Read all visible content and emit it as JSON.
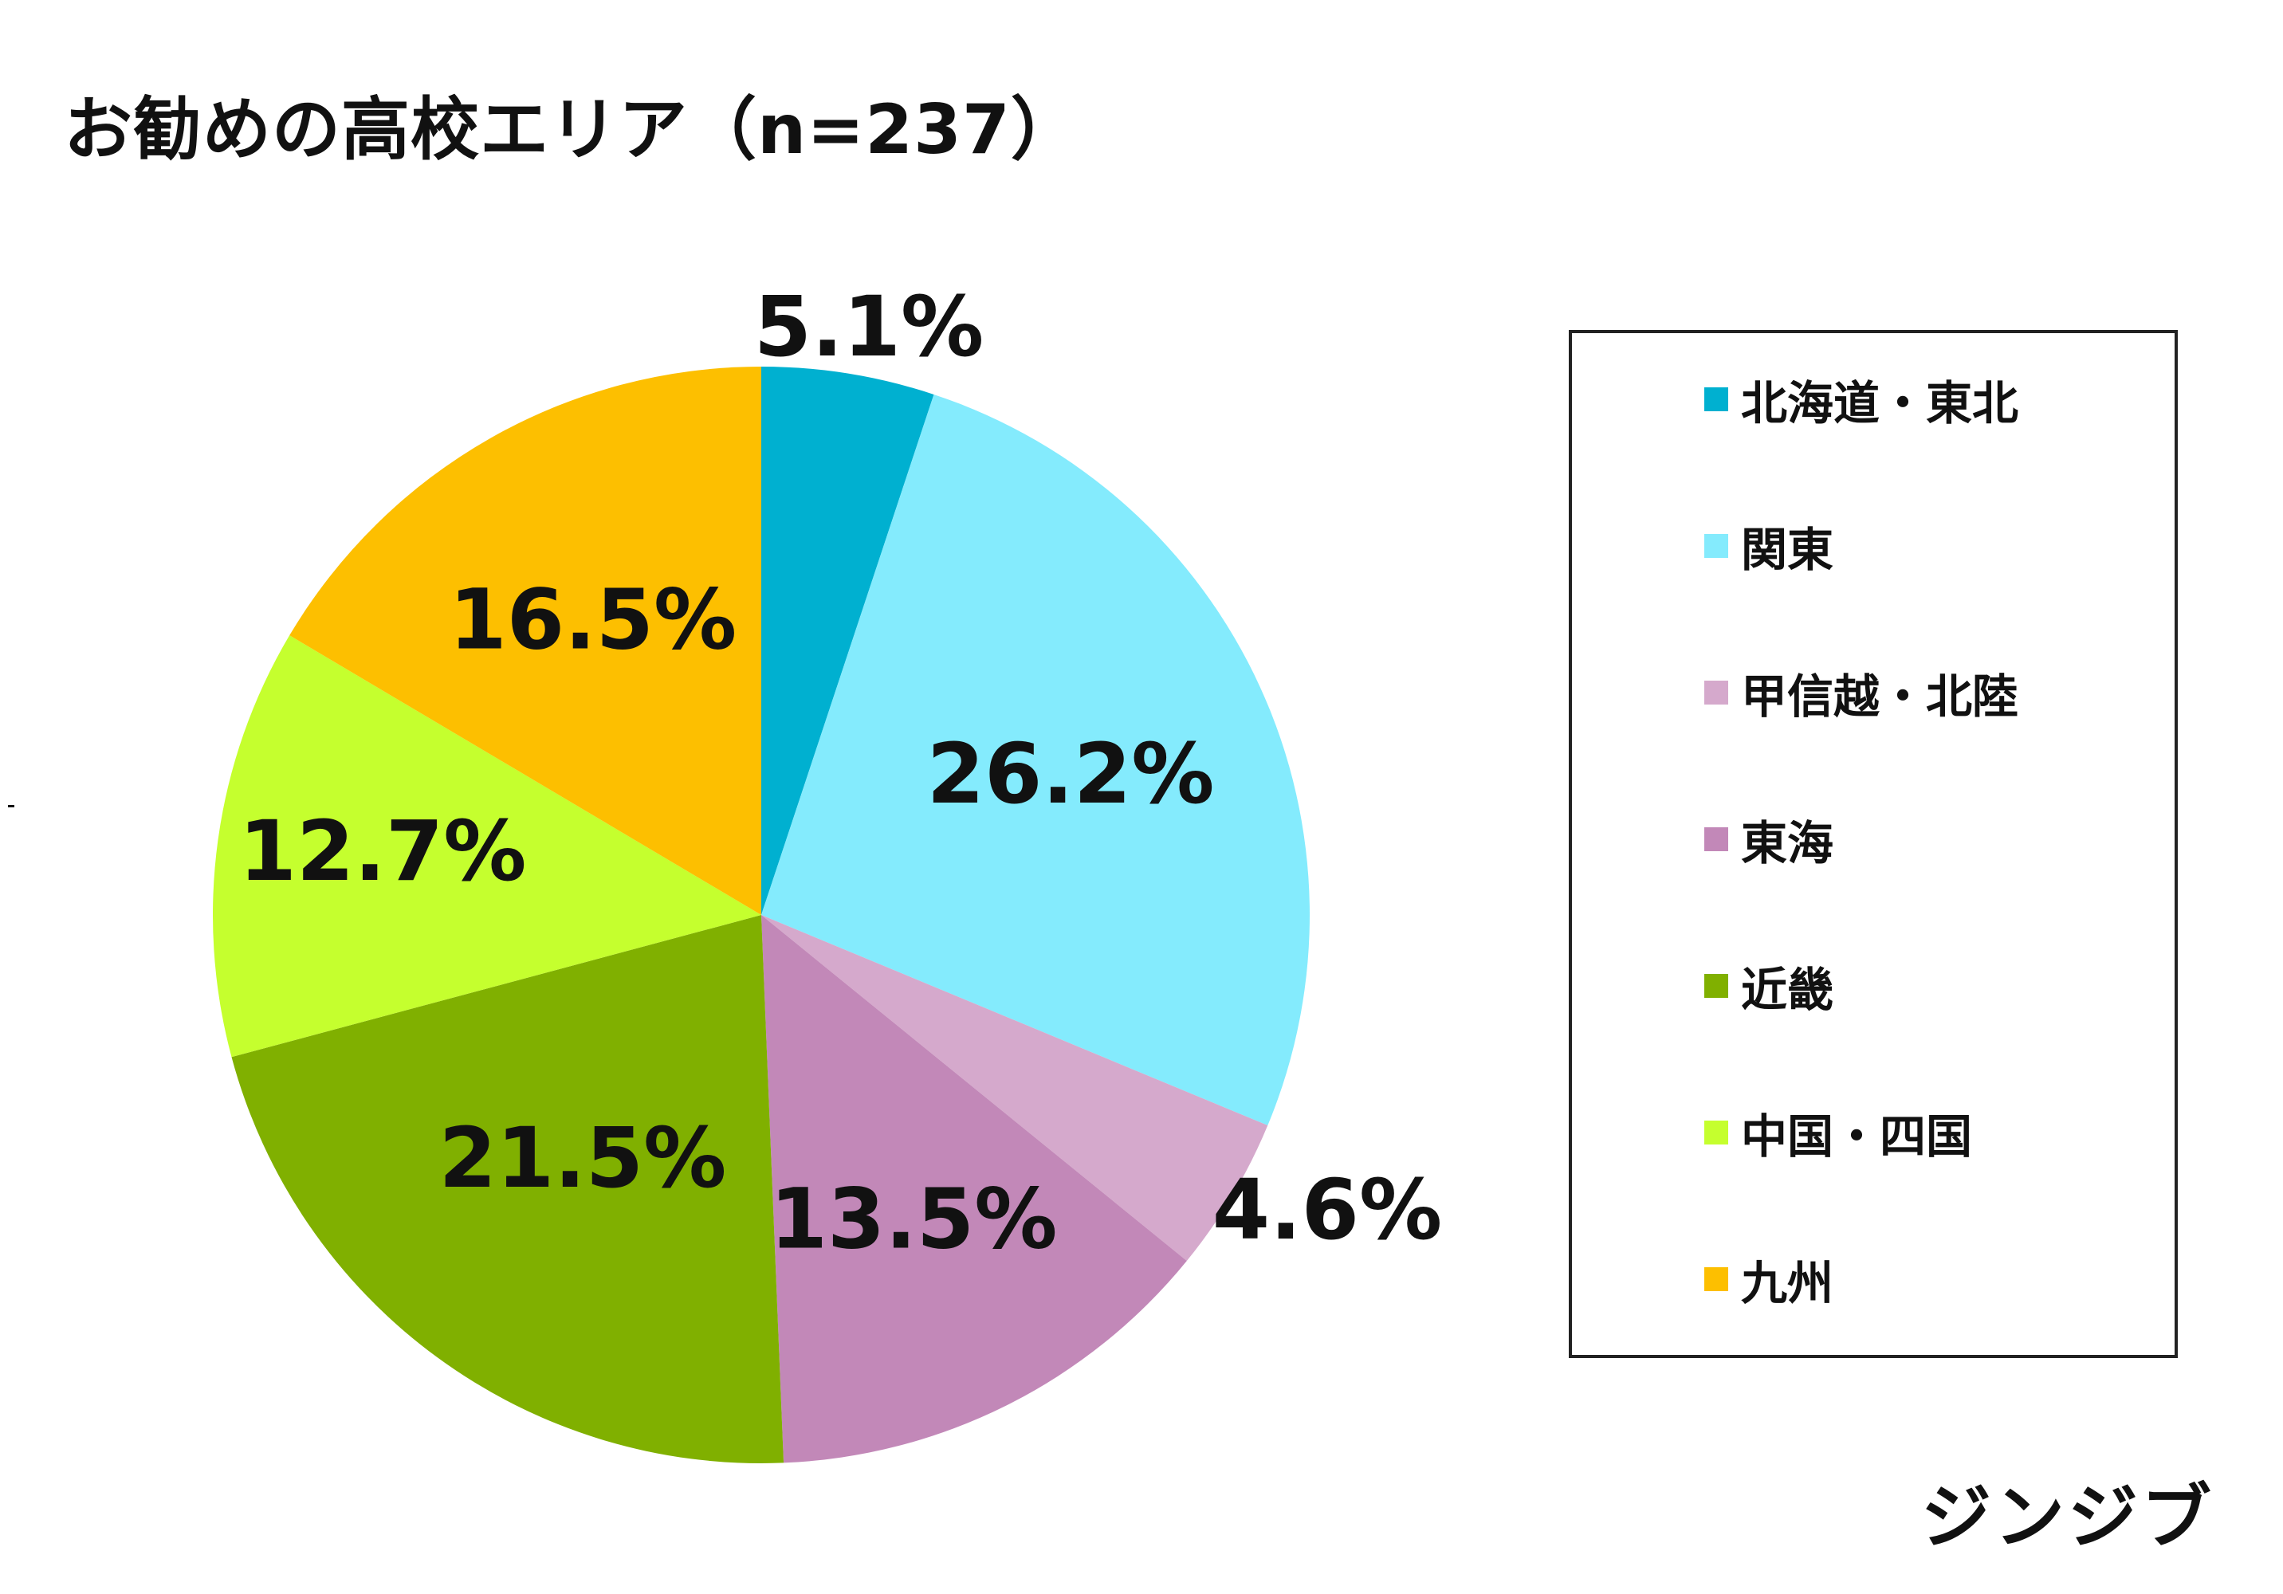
{
  "chart_data": {
    "type": "pie",
    "title": "お勧めの高校エリア（n=237）",
    "slices": [
      {
        "name": "北海道・東北",
        "value": 5.1,
        "label": "5.1%",
        "color": "#00b0d0"
      },
      {
        "name": "関東",
        "value": 26.2,
        "label": "26.2%",
        "color": "#84ebfd"
      },
      {
        "name": "甲信越・北陸",
        "value": 4.6,
        "label": "4.6%",
        "color": "#d5a9cc"
      },
      {
        "name": "東海",
        "value": 13.5,
        "label": "13.5%",
        "color": "#c288b8"
      },
      {
        "name": "近畿",
        "value": 21.5,
        "label": "21.5%",
        "color": "#80b000"
      },
      {
        "name": "中国・四国",
        "value": 12.7,
        "label": "12.7%",
        "color": "#c5ff2e"
      },
      {
        "name": "九州",
        "value": 16.5,
        "label": "16.5%",
        "color": "#fdbf00"
      }
    ],
    "start_angle": "12 o'clock",
    "direction": "clockwise",
    "legend_position": "right",
    "legend_border": true
  },
  "brand": {
    "logo_text": "ジンジブ"
  }
}
